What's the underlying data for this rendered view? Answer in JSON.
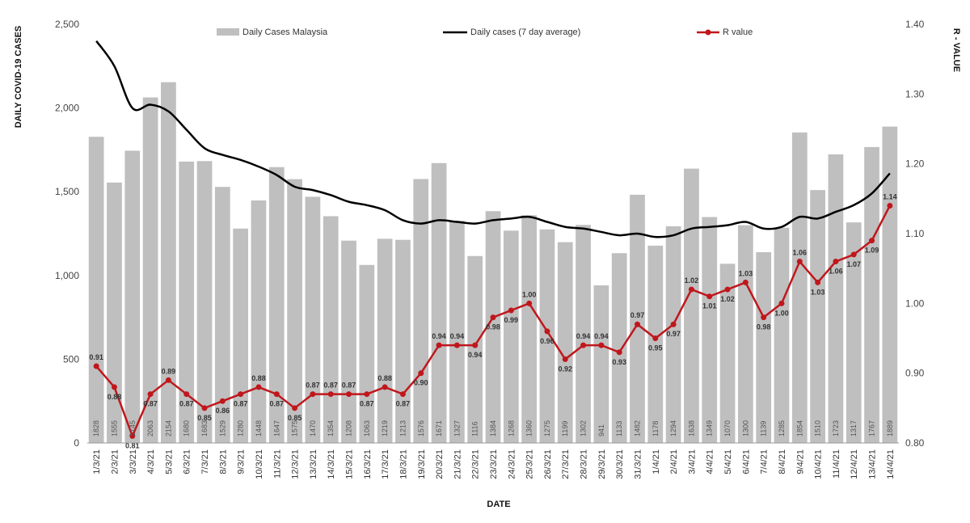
{
  "chart_data": {
    "type": "bar",
    "categories": [
      "1/3/21",
      "2/3/21",
      "3/3/21",
      "4/3/21",
      "5/3/21",
      "6/3/21",
      "7/3/21",
      "8/3/21",
      "9/3/21",
      "10/3/21",
      "11/3/21",
      "12/3/21",
      "13/3/21",
      "14/3/21",
      "15/3/21",
      "16/3/21",
      "17/3/21",
      "18/3/21",
      "19/3/21",
      "20/3/21",
      "21/3/21",
      "22/3/21",
      "23/3/21",
      "24/3/21",
      "25/3/21",
      "26/3/21",
      "27/3/21",
      "28/3/21",
      "29/3/21",
      "30/3/21",
      "31/3/21",
      "1/4/21",
      "2/4/21",
      "3/4/21",
      "4/4/21",
      "5/4/21",
      "6/4/21",
      "7/4/21",
      "8/4/21",
      "9/4/21",
      "10/4/21",
      "11/4/21",
      "12/4/21",
      "13/4/21",
      "14/4/21"
    ],
    "series": [
      {
        "name": "Daily Cases Malaysia",
        "type": "bar",
        "axis": "left",
        "color": "#bfbfbf",
        "values": [
          1828,
          1555,
          1745,
          2063,
          2154,
          1680,
          1683,
          1529,
          1280,
          1448,
          1647,
          1575,
          1470,
          1354,
          1208,
          1063,
          1219,
          1213,
          1576,
          1671,
          1327,
          1116,
          1384,
          1268,
          1360,
          1275,
          1199,
          1302,
          941,
          1133,
          1482,
          1178,
          1294,
          1638,
          1349,
          1070,
          1300,
          1139,
          1285,
          1854,
          1510,
          1723,
          1317,
          1767,
          1889
        ]
      },
      {
        "name": "Daily cases (7 day average)",
        "type": "line",
        "axis": "left",
        "color": "#000000",
        "values": [
          2400,
          2250,
          2000,
          2020,
          1980,
          1870,
          1760,
          1720,
          1690,
          1650,
          1600,
          1530,
          1510,
          1480,
          1440,
          1420,
          1390,
          1330,
          1310,
          1330,
          1320,
          1310,
          1330,
          1340,
          1350,
          1320,
          1290,
          1280,
          1260,
          1240,
          1250,
          1230,
          1240,
          1280,
          1290,
          1300,
          1320,
          1280,
          1290,
          1350,
          1340,
          1380,
          1420,
          1490,
          1610
        ]
      },
      {
        "name": "R value",
        "type": "line",
        "axis": "right",
        "color": "#c0171c",
        "values": [
          0.91,
          0.88,
          0.81,
          0.87,
          0.89,
          0.87,
          0.85,
          0.86,
          0.87,
          0.88,
          0.87,
          0.85,
          0.87,
          0.87,
          0.87,
          0.87,
          0.88,
          0.87,
          0.9,
          0.94,
          0.94,
          0.94,
          0.98,
          0.99,
          1.0,
          0.96,
          0.92,
          0.94,
          0.94,
          0.93,
          0.97,
          0.95,
          0.97,
          1.02,
          1.01,
          1.02,
          1.03,
          0.98,
          1.0,
          1.06,
          1.03,
          1.06,
          1.07,
          1.09,
          1.14
        ]
      }
    ],
    "ylabel": "DAILY COVID-19 CASES",
    "y2label": "R - VALUE",
    "xlabel": "DATE",
    "ylim": [
      0,
      2500
    ],
    "yticks": [
      0,
      500,
      1000,
      1500,
      2000,
      2500
    ],
    "ytick_labels": [
      "0",
      "500",
      "1,000",
      "1,500",
      "2,000",
      "2,500"
    ],
    "y2lim": [
      0.8,
      1.4
    ],
    "y2ticks": [
      0.8,
      0.9,
      1.0,
      1.1,
      1.2,
      1.3,
      1.4
    ],
    "y2tick_labels": [
      "0.80",
      "0.90",
      "1.00",
      "1.10",
      "1.20",
      "1.30",
      "1.40"
    ],
    "grid": false,
    "legend": "top"
  }
}
